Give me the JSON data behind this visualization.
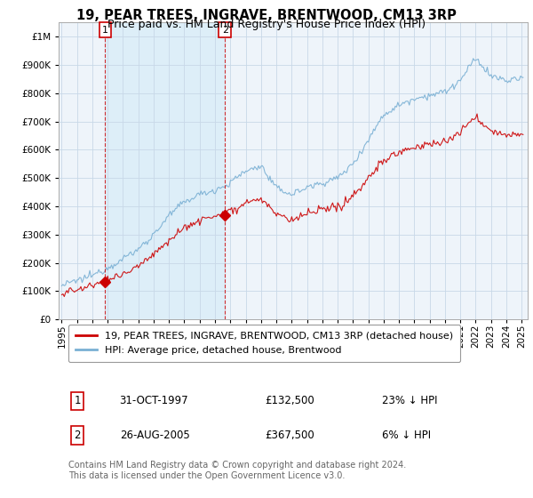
{
  "title": "19, PEAR TREES, INGRAVE, BRENTWOOD, CM13 3RP",
  "subtitle": "Price paid vs. HM Land Registry's House Price Index (HPI)",
  "ytick_vals": [
    0,
    100000,
    200000,
    300000,
    400000,
    500000,
    600000,
    700000,
    800000,
    900000,
    1000000
  ],
  "ylim": [
    0,
    1050000
  ],
  "sale_dates": [
    1997.833,
    2005.65
  ],
  "sale_prices": [
    132500,
    367500
  ],
  "sale_labels": [
    "1",
    "2"
  ],
  "legend_entries": [
    "19, PEAR TREES, INGRAVE, BRENTWOOD, CM13 3RP (detached house)",
    "HPI: Average price, detached house, Brentwood"
  ],
  "table_rows": [
    [
      "1",
      "31-OCT-1997",
      "£132,500",
      "23% ↓ HPI"
    ],
    [
      "2",
      "26-AUG-2005",
      "£367,500",
      "6% ↓ HPI"
    ]
  ],
  "footnote": "Contains HM Land Registry data © Crown copyright and database right 2024.\nThis data is licensed under the Open Government Licence v3.0.",
  "hpi_color": "#7ab0d4",
  "price_color": "#cc0000",
  "shade_color": "#ddeef8",
  "background_color": "#ffffff",
  "plot_bg_color": "#eef4fa",
  "grid_color": "#c8d8e8",
  "title_fontsize": 10.5,
  "subtitle_fontsize": 9,
  "tick_fontsize": 7.5,
  "legend_fontsize": 8,
  "table_fontsize": 8.5,
  "footnote_fontsize": 7,
  "xlim_start": 1994.8,
  "xlim_end": 2025.4
}
